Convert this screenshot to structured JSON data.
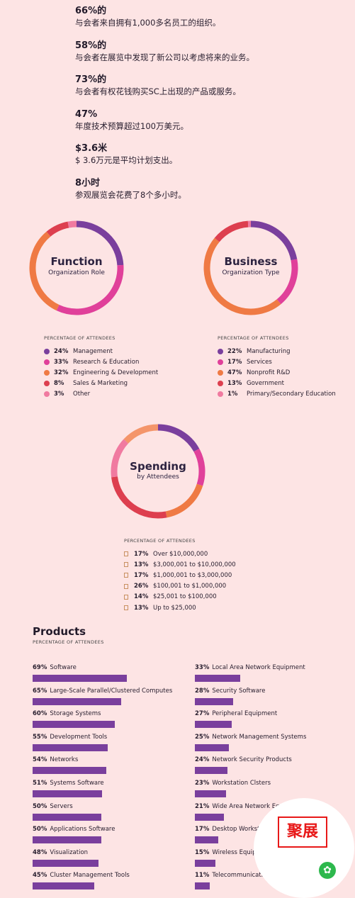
{
  "stats": [
    {
      "head": "66%的",
      "desc": "与会者来自拥有1,000多名员工的组织。"
    },
    {
      "head": "58%的",
      "desc": "与会者在展览中发现了新公司以考虑将来的业务。"
    },
    {
      "head": "73%的",
      "desc": "与会者有权花钱购买SC上出现的产品或服务。"
    },
    {
      "head": "47%",
      "desc": "年度技术预算超过100万美元。"
    },
    {
      "head": "$3.6米",
      "desc": "$ 3.6万元是平均计划支出。"
    },
    {
      "head": "8小时",
      "desc": "参观展览会花费了8个多小时。"
    }
  ],
  "function_chart": {
    "title": "Function",
    "subtitle": "Organization Role",
    "legend_head": "PERCENTAGE OF ATTENDEES",
    "items": [
      {
        "pct": "24%",
        "label": "Management",
        "value": 24,
        "color": "#7a3f9d"
      },
      {
        "pct": "33%",
        "label": "Research & Education",
        "value": 33,
        "color": "#e0409a"
      },
      {
        "pct": "32%",
        "label": "Engineering & Development",
        "value": 32,
        "color": "#ef7a44"
      },
      {
        "pct": "8%",
        "label": "Sales & Marketing",
        "value": 8,
        "color": "#dd3f4f"
      },
      {
        "pct": "3%",
        "label": "Other",
        "value": 3,
        "color": "#f07aa0"
      }
    ]
  },
  "business_chart": {
    "title": "Business",
    "subtitle": "Organization Type",
    "legend_head": "PERCENTAGE OF ATTENDEES",
    "items": [
      {
        "pct": "22%",
        "label": "Manufacturing",
        "value": 22,
        "color": "#7a3f9d"
      },
      {
        "pct": "17%",
        "label": "Services",
        "value": 17,
        "color": "#e0409a"
      },
      {
        "pct": "47%",
        "label": "Nonprofit R&D",
        "value": 47,
        "color": "#ef7a44"
      },
      {
        "pct": "13%",
        "label": "Government",
        "value": 13,
        "color": "#dd3f4f"
      },
      {
        "pct": "1%",
        "label": "Primary/Secondary Education",
        "value": 1,
        "color": "#f07aa0"
      }
    ]
  },
  "spending_chart": {
    "title": "Spending",
    "subtitle": "by Attendees",
    "legend_head": "PERCENTAGE OF ATTENDEES",
    "items": [
      {
        "pct": "17%",
        "label": "Over $10,000,000",
        "value": 17,
        "color": "#7a3f9d"
      },
      {
        "pct": "13%",
        "label": "$3,000,001 to $10,000,000",
        "value": 13,
        "color": "#e0409a"
      },
      {
        "pct": "17%",
        "label": "$1,000,001 to $3,000,000",
        "value": 17,
        "color": "#ef7a44"
      },
      {
        "pct": "26%",
        "label": "$100,001 to $1,000,000",
        "value": 26,
        "color": "#dd3f4f"
      },
      {
        "pct": "14%",
        "label": "$25,001 to $100,000",
        "value": 14,
        "color": "#f07aa0"
      },
      {
        "pct": "13%",
        "label": "Up to $25,000",
        "value": 13,
        "color": "#f4956a"
      }
    ]
  },
  "products": {
    "title": "Products",
    "subtitle": "PERCENTAGE OF ATTENDEES",
    "bar_color": "#7a3f9d",
    "left": [
      {
        "pct": "69%",
        "label": "Software",
        "value": 69
      },
      {
        "pct": "65%",
        "label": "Large-Scale Parallel/Clustered Computes",
        "value": 65
      },
      {
        "pct": "60%",
        "label": "Storage Systems",
        "value": 60
      },
      {
        "pct": "55%",
        "label": "Development Tools",
        "value": 55
      },
      {
        "pct": "54%",
        "label": "Networks",
        "value": 54
      },
      {
        "pct": "51%",
        "label": "Systems Software",
        "value": 51
      },
      {
        "pct": "50%",
        "label": "Servers",
        "value": 50
      },
      {
        "pct": "50%",
        "label": "Applications Software",
        "value": 50
      },
      {
        "pct": "48%",
        "label": "Visualization",
        "value": 48
      },
      {
        "pct": "45%",
        "label": "Cluster Management Tools",
        "value": 45
      }
    ],
    "right": [
      {
        "pct": "33%",
        "label": "Local Area Network Equipment",
        "value": 33
      },
      {
        "pct": "28%",
        "label": "Security Software",
        "value": 28
      },
      {
        "pct": "27%",
        "label": "Peripheral Equipment",
        "value": 27
      },
      {
        "pct": "25%",
        "label": "Network Management Systems",
        "value": 25
      },
      {
        "pct": "24%",
        "label": "Network Security Products",
        "value": 24
      },
      {
        "pct": "23%",
        "label": "Workstation Clsters",
        "value": 23
      },
      {
        "pct": "21%",
        "label": "Wide Area Network Equipment",
        "value": 21
      },
      {
        "pct": "17%",
        "label": "Desktop Workstations",
        "value": 17
      },
      {
        "pct": "15%",
        "label": "Wireless Equipment",
        "value": 15
      },
      {
        "pct": "11%",
        "label": "Telecommunications Sales",
        "value": 11
      }
    ]
  },
  "qr": {
    "logo_text": "聚展",
    "mini_icon": "mini-program-icon"
  }
}
